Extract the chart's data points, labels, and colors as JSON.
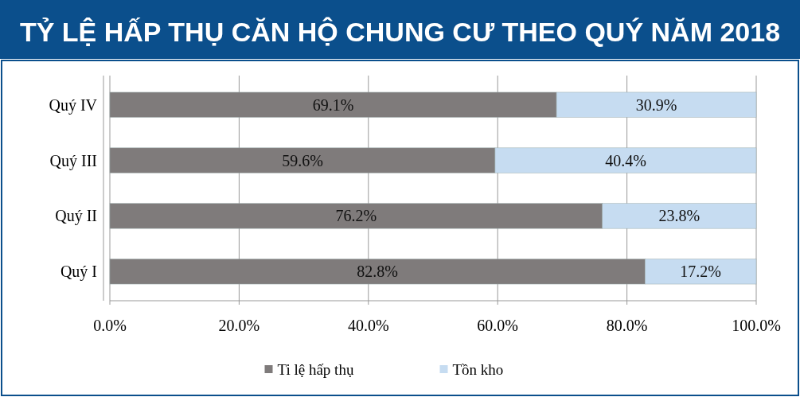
{
  "chart_data": {
    "type": "bar",
    "title": "TỶ LỆ HẤP THỤ CĂN HỘ CHUNG CƯ THEO QUÝ NĂM 2018",
    "orientation": "horizontal",
    "stacked": true,
    "categories": [
      "Quý IV",
      "Quý III",
      "Quý II",
      "Quý I"
    ],
    "series": [
      {
        "name": "Ti lệ hấp thụ",
        "color": "#7f7b7b",
        "values": [
          69.1,
          59.6,
          76.2,
          82.8
        ],
        "value_labels": [
          "69.1%",
          "59.6%",
          "76.2%",
          "82.8%"
        ]
      },
      {
        "name": "Tồn kho",
        "color": "#c6dcf1",
        "values": [
          30.9,
          40.4,
          23.8,
          17.2
        ],
        "value_labels": [
          "30.9%",
          "40.4%",
          "23.8%",
          "17.2%"
        ]
      }
    ],
    "xlim": [
      0,
      100
    ],
    "xticks": [
      {
        "value": 0,
        "label": "0.0%"
      },
      {
        "value": 20,
        "label": "20.0%"
      },
      {
        "value": 40,
        "label": "40.0%"
      },
      {
        "value": 60,
        "label": "60.0%"
      },
      {
        "value": 80,
        "label": "80.0%"
      },
      {
        "value": 100,
        "label": "100.0%"
      }
    ],
    "grid": "x",
    "legend": "bottom"
  }
}
